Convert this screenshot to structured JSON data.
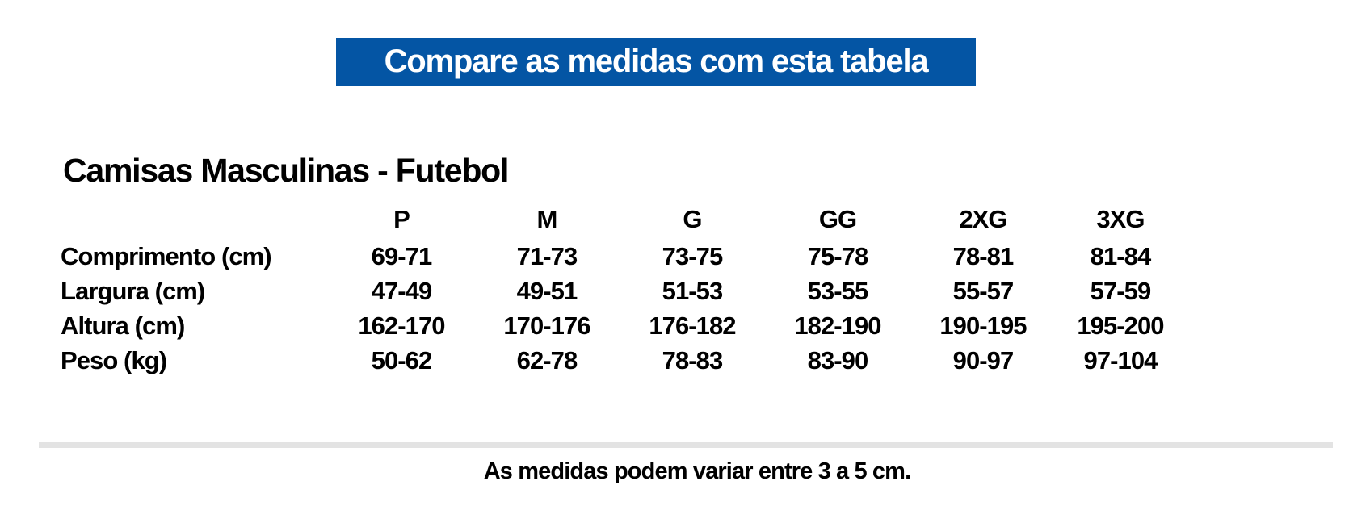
{
  "banner": {
    "label": "Compare as medidas com esta tabela",
    "bg_color": "#0455a4",
    "text_color": "#ffffff"
  },
  "section": {
    "title": "Camisas Masculinas - Futebol"
  },
  "size_table": {
    "columns": [
      "P",
      "M",
      "G",
      "GG",
      "2XG",
      "3XG"
    ],
    "rows": [
      {
        "label": "Comprimento (cm)",
        "values": [
          "69-71",
          "71-73",
          "73-75",
          "75-78",
          "78-81",
          "81-84"
        ]
      },
      {
        "label": "Largura (cm)",
        "values": [
          "47-49",
          "49-51",
          "51-53",
          "53-55",
          "55-57",
          "57-59"
        ]
      },
      {
        "label": "Altura (cm)",
        "values": [
          "162-170",
          "170-176",
          "176-182",
          "182-190",
          "190-195",
          "195-200"
        ]
      },
      {
        "label": "Peso (kg)",
        "values": [
          "50-62",
          "62-78",
          "78-83",
          "83-90",
          "90-97",
          "97-104"
        ]
      }
    ]
  },
  "footer": {
    "note": "As medidas podem variar entre 3 a 5 cm."
  },
  "colors": {
    "divider": "#e3e3e3",
    "text": "#000000",
    "background": "#ffffff"
  }
}
